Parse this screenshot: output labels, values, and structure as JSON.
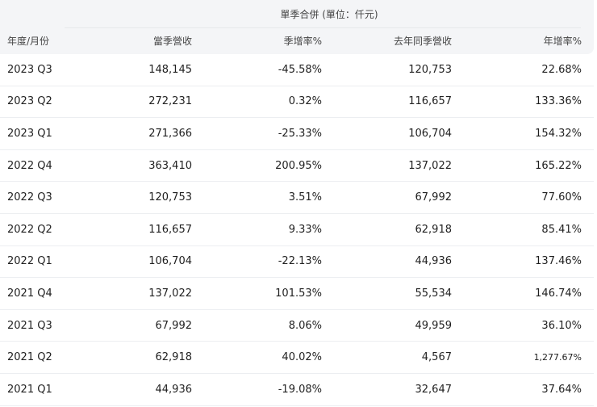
{
  "table": {
    "group_header": "單季合併 (單位：仟元)",
    "columns": [
      "年度/月份",
      "當季營收",
      "季增率%",
      "去年同季營收",
      "年增率%"
    ],
    "rows": [
      {
        "period": "2023 Q3",
        "revenue": "148,145",
        "qoq": "-45.58%",
        "last_year_revenue": "120,753",
        "yoy": "22.68%"
      },
      {
        "period": "2023 Q2",
        "revenue": "272,231",
        "qoq": "0.32%",
        "last_year_revenue": "116,657",
        "yoy": "133.36%"
      },
      {
        "period": "2023 Q1",
        "revenue": "271,366",
        "qoq": "-25.33%",
        "last_year_revenue": "106,704",
        "yoy": "154.32%"
      },
      {
        "period": "2022 Q4",
        "revenue": "363,410",
        "qoq": "200.95%",
        "last_year_revenue": "137,022",
        "yoy": "165.22%"
      },
      {
        "period": "2022 Q3",
        "revenue": "120,753",
        "qoq": "3.51%",
        "last_year_revenue": "67,992",
        "yoy": "77.60%"
      },
      {
        "period": "2022 Q2",
        "revenue": "116,657",
        "qoq": "9.33%",
        "last_year_revenue": "62,918",
        "yoy": "85.41%"
      },
      {
        "period": "2022 Q1",
        "revenue": "106,704",
        "qoq": "-22.13%",
        "last_year_revenue": "44,936",
        "yoy": "137.46%"
      },
      {
        "period": "2021 Q4",
        "revenue": "137,022",
        "qoq": "101.53%",
        "last_year_revenue": "55,534",
        "yoy": "146.74%"
      },
      {
        "period": "2021 Q3",
        "revenue": "67,992",
        "qoq": "8.06%",
        "last_year_revenue": "49,959",
        "yoy": "36.10%"
      },
      {
        "period": "2021 Q2",
        "revenue": "62,918",
        "qoq": "40.02%",
        "last_year_revenue": "4,567",
        "yoy": "1,277.67%"
      },
      {
        "period": "2021 Q1",
        "revenue": "44,936",
        "qoq": "-19.08%",
        "last_year_revenue": "32,647",
        "yoy": "37.64%"
      }
    ]
  },
  "colors": {
    "header_bg": "#f4f5f7",
    "row_border": "#eceef1",
    "text": "#1f1f1f"
  }
}
